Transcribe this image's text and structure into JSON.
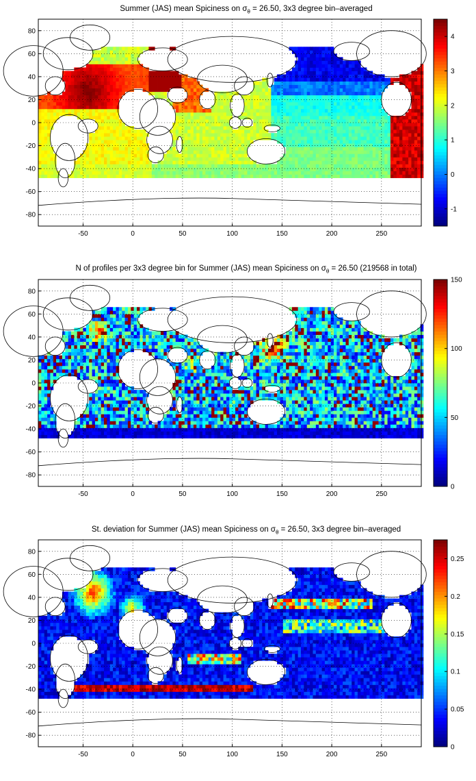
{
  "chart_data": [
    {
      "type": "heatmap",
      "title": {
        "before": "Summer (JAS) mean Spiciness on ",
        "sym": "σ",
        "sub": "θ",
        "after": " = 26.50, 3x3 degree bin–averaged"
      },
      "xlim": [
        -95,
        290
      ],
      "ylim": [
        -90,
        90
      ],
      "xticks": [
        -50,
        0,
        50,
        100,
        150,
        200,
        250
      ],
      "yticks": [
        -80,
        -60,
        -40,
        -20,
        0,
        20,
        40,
        60,
        80
      ],
      "grid": true,
      "colorbar": {
        "min": -1.5,
        "max": 4.5,
        "ticks": [
          -1,
          0,
          1,
          2,
          3,
          4
        ]
      },
      "field": "spice"
    },
    {
      "type": "heatmap",
      "title": {
        "before": "N of profiles per 3x3 degree bin for Summer (JAS) mean Spiciness on ",
        "sym": "σ",
        "sub": "θ",
        "after": " = 26.50 (219568 in total)"
      },
      "xlim": [
        -95,
        290
      ],
      "ylim": [
        -90,
        90
      ],
      "xticks": [
        -50,
        0,
        50,
        100,
        150,
        200,
        250
      ],
      "yticks": [
        -80,
        -60,
        -40,
        -20,
        0,
        20,
        40,
        60,
        80
      ],
      "grid": true,
      "colorbar": {
        "min": 0,
        "max": 150,
        "ticks": [
          0,
          50,
          100,
          150
        ]
      },
      "field": "count"
    },
    {
      "type": "heatmap",
      "title": {
        "before": "St. deviation for Summer (JAS) mean Spiciness on ",
        "sym": "σ",
        "sub": "θ",
        "after": " = 26.50, 3x3 degree bin–averaged"
      },
      "xlim": [
        -95,
        290
      ],
      "ylim": [
        -90,
        90
      ],
      "xticks": [
        -50,
        0,
        50,
        100,
        150,
        200,
        250
      ],
      "yticks": [
        -80,
        -60,
        -40,
        -20,
        0,
        20,
        40,
        60,
        80
      ],
      "grid": true,
      "colorbar": {
        "min": 0,
        "max": 0.275,
        "ticks": [
          0,
          0.05,
          0.1,
          0.15,
          0.2,
          0.25
        ]
      },
      "field": "std"
    }
  ]
}
